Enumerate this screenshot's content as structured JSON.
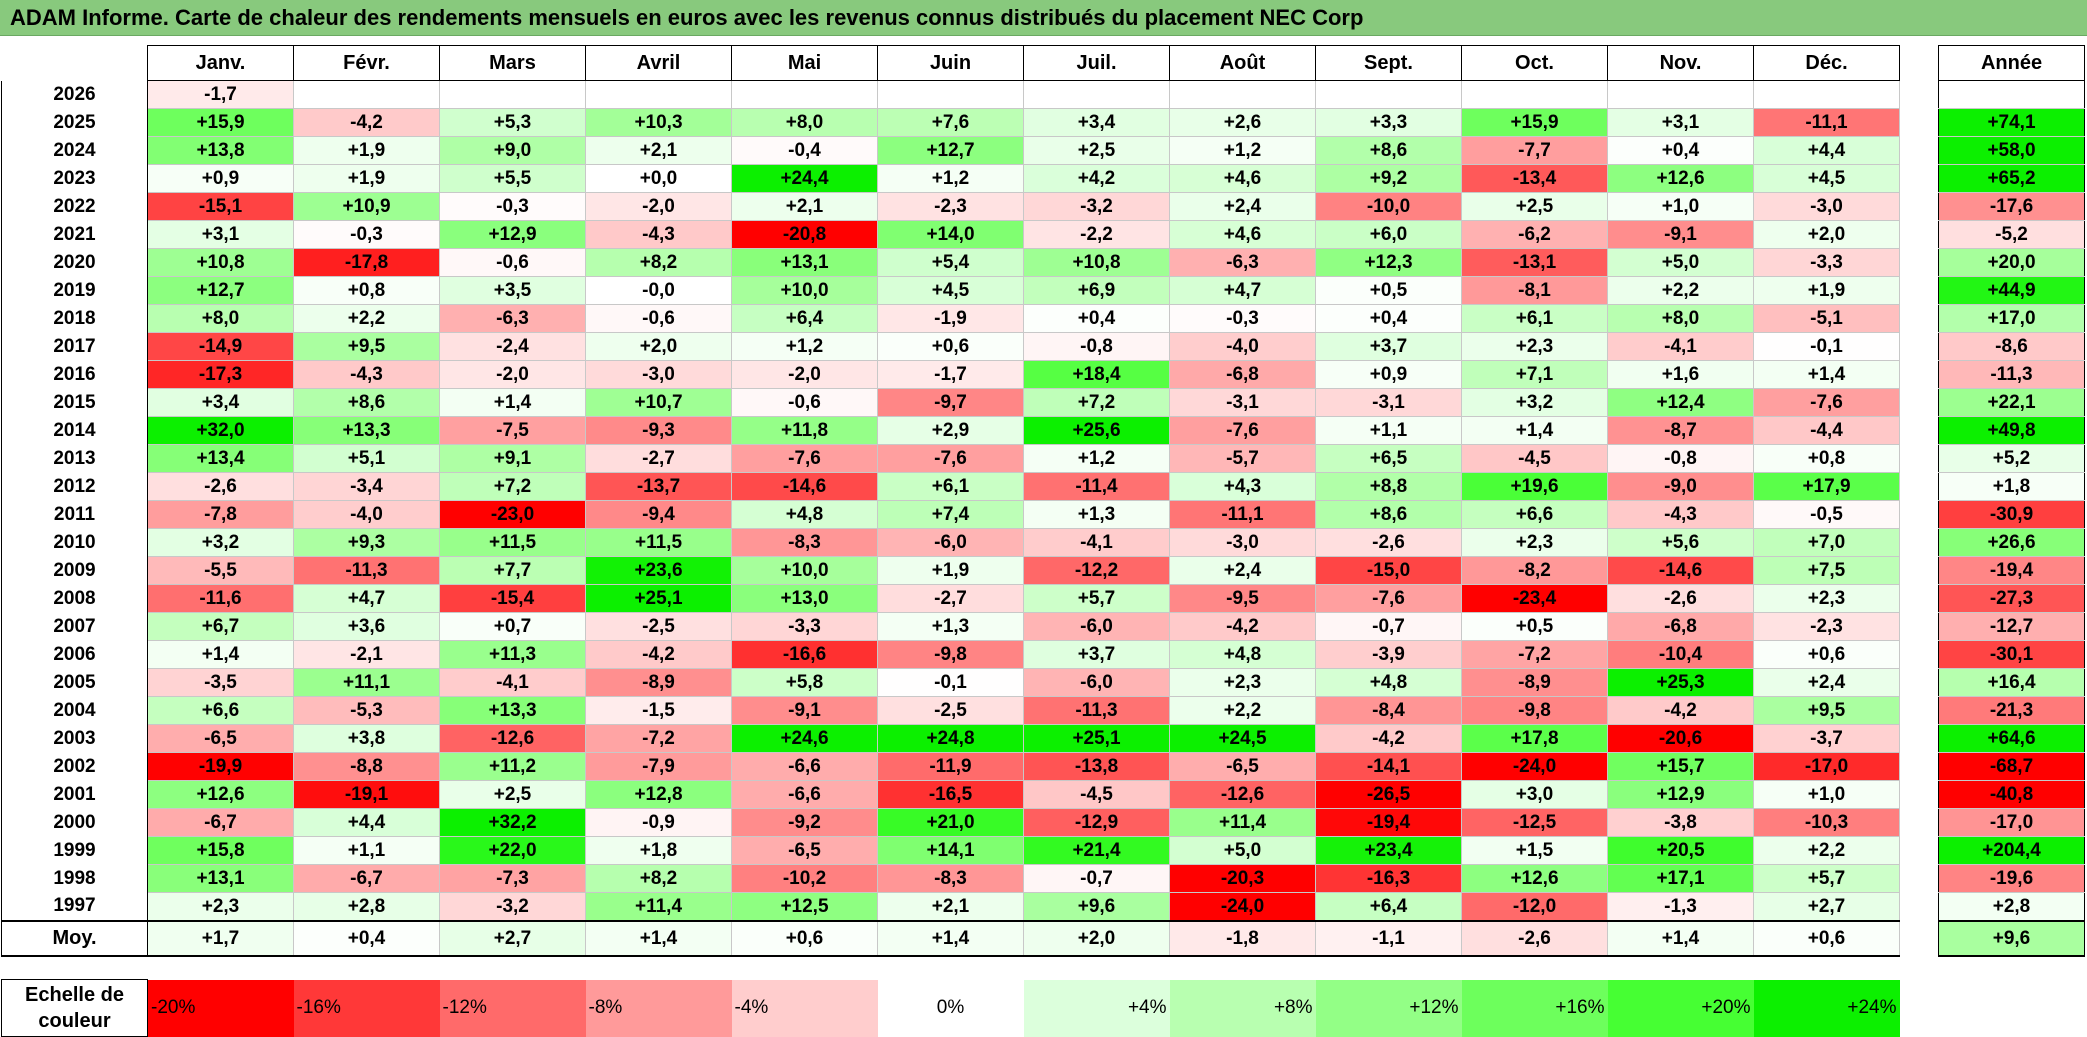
{
  "title": "ADAM Informe. Carte de chaleur des rendements mensuels en euros avec les revenus connus distribués du placement NEC Corp",
  "chart_data": {
    "type": "heatmap",
    "columns": [
      "Janv.",
      "Févr.",
      "Mars",
      "Avril",
      "Mai",
      "Juin",
      "Juil.",
      "Août",
      "Sept.",
      "Oct.",
      "Nov.",
      "Déc."
    ],
    "year_column_label": "Année",
    "rows": [
      {
        "year": "2026",
        "values": [
          "-1,7",
          "",
          "",
          "",
          "",
          "",
          "",
          "",
          "",
          "",
          "",
          ""
        ],
        "annual": ""
      },
      {
        "year": "2025",
        "values": [
          "+15,9",
          "-4,2",
          "+5,3",
          "+10,3",
          "+8,0",
          "+7,6",
          "+3,4",
          "+2,6",
          "+3,3",
          "+15,9",
          "+3,1",
          "-11,1"
        ],
        "annual": "+74,1"
      },
      {
        "year": "2024",
        "values": [
          "+13,8",
          "+1,9",
          "+9,0",
          "+2,1",
          "-0,4",
          "+12,7",
          "+2,5",
          "+1,2",
          "+8,6",
          "-7,7",
          "+0,4",
          "+4,4"
        ],
        "annual": "+58,0"
      },
      {
        "year": "2023",
        "values": [
          "+0,9",
          "+1,9",
          "+5,5",
          "+0,0",
          "+24,4",
          "+1,2",
          "+4,2",
          "+4,6",
          "+9,2",
          "-13,4",
          "+12,6",
          "+4,5"
        ],
        "annual": "+65,2"
      },
      {
        "year": "2022",
        "values": [
          "-15,1",
          "+10,9",
          "-0,3",
          "-2,0",
          "+2,1",
          "-2,3",
          "-3,2",
          "+2,4",
          "-10,0",
          "+2,5",
          "+1,0",
          "-3,0"
        ],
        "annual": "-17,6"
      },
      {
        "year": "2021",
        "values": [
          "+3,1",
          "-0,3",
          "+12,9",
          "-4,3",
          "-20,8",
          "+14,0",
          "-2,2",
          "+4,6",
          "+6,0",
          "-6,2",
          "-9,1",
          "+2,0"
        ],
        "annual": "-5,2"
      },
      {
        "year": "2020",
        "values": [
          "+10,8",
          "-17,8",
          "-0,6",
          "+8,2",
          "+13,1",
          "+5,4",
          "+10,8",
          "-6,3",
          "+12,3",
          "-13,1",
          "+5,0",
          "-3,3"
        ],
        "annual": "+20,0"
      },
      {
        "year": "2019",
        "values": [
          "+12,7",
          "+0,8",
          "+3,5",
          "-0,0",
          "+10,0",
          "+4,5",
          "+6,9",
          "+4,7",
          "+0,5",
          "-8,1",
          "+2,2",
          "+1,9"
        ],
        "annual": "+44,9"
      },
      {
        "year": "2018",
        "values": [
          "+8,0",
          "+2,2",
          "-6,3",
          "-0,6",
          "+6,4",
          "-1,9",
          "+0,4",
          "-0,3",
          "+0,4",
          "+6,1",
          "+8,0",
          "-5,1"
        ],
        "annual": "+17,0"
      },
      {
        "year": "2017",
        "values": [
          "-14,9",
          "+9,5",
          "-2,4",
          "+2,0",
          "+1,2",
          "+0,6",
          "-0,8",
          "-4,0",
          "+3,7",
          "+2,3",
          "-4,1",
          "-0,1"
        ],
        "annual": "-8,6"
      },
      {
        "year": "2016",
        "values": [
          "-17,3",
          "-4,3",
          "-2,0",
          "-3,0",
          "-2,0",
          "-1,7",
          "+18,4",
          "-6,8",
          "+0,9",
          "+7,1",
          "+1,6",
          "+1,4"
        ],
        "annual": "-11,3"
      },
      {
        "year": "2015",
        "values": [
          "+3,4",
          "+8,6",
          "+1,4",
          "+10,7",
          "-0,6",
          "-9,7",
          "+7,2",
          "-3,1",
          "-3,1",
          "+3,2",
          "+12,4",
          "-7,6"
        ],
        "annual": "+22,1"
      },
      {
        "year": "2014",
        "values": [
          "+32,0",
          "+13,3",
          "-7,5",
          "-9,3",
          "+11,8",
          "+2,9",
          "+25,6",
          "-7,6",
          "+1,1",
          "+1,4",
          "-8,7",
          "-4,4"
        ],
        "annual": "+49,8"
      },
      {
        "year": "2013",
        "values": [
          "+13,4",
          "+5,1",
          "+9,1",
          "-2,7",
          "-7,6",
          "-7,6",
          "+1,2",
          "-5,7",
          "+6,5",
          "-4,5",
          "-0,8",
          "+0,8"
        ],
        "annual": "+5,2"
      },
      {
        "year": "2012",
        "values": [
          "-2,6",
          "-3,4",
          "+7,2",
          "-13,7",
          "-14,6",
          "+6,1",
          "-11,4",
          "+4,3",
          "+8,8",
          "+19,6",
          "-9,0",
          "+17,9"
        ],
        "annual": "+1,8"
      },
      {
        "year": "2011",
        "values": [
          "-7,8",
          "-4,0",
          "-23,0",
          "-9,4",
          "+4,8",
          "+7,4",
          "+1,3",
          "-11,1",
          "+8,6",
          "+6,6",
          "-4,3",
          "-0,5"
        ],
        "annual": "-30,9"
      },
      {
        "year": "2010",
        "values": [
          "+3,2",
          "+9,3",
          "+11,5",
          "+11,5",
          "-8,3",
          "-6,0",
          "-4,1",
          "-3,0",
          "-2,6",
          "+2,3",
          "+5,6",
          "+7,0"
        ],
        "annual": "+26,6"
      },
      {
        "year": "2009",
        "values": [
          "-5,5",
          "-11,3",
          "+7,7",
          "+23,6",
          "+10,0",
          "+1,9",
          "-12,2",
          "+2,4",
          "-15,0",
          "-8,2",
          "-14,6",
          "+7,5"
        ],
        "annual": "-19,4"
      },
      {
        "year": "2008",
        "values": [
          "-11,6",
          "+4,7",
          "-15,4",
          "+25,1",
          "+13,0",
          "-2,7",
          "+5,7",
          "-9,5",
          "-7,6",
          "-23,4",
          "-2,6",
          "+2,3"
        ],
        "annual": "-27,3"
      },
      {
        "year": "2007",
        "values": [
          "+6,7",
          "+3,6",
          "+0,7",
          "-2,5",
          "-3,3",
          "+1,3",
          "-6,0",
          "-4,2",
          "-0,7",
          "+0,5",
          "-6,8",
          "-2,3"
        ],
        "annual": "-12,7"
      },
      {
        "year": "2006",
        "values": [
          "+1,4",
          "-2,1",
          "+11,3",
          "-4,2",
          "-16,6",
          "-9,8",
          "+3,7",
          "+4,8",
          "-3,9",
          "-7,2",
          "-10,4",
          "+0,6"
        ],
        "annual": "-30,1"
      },
      {
        "year": "2005",
        "values": [
          "-3,5",
          "+11,1",
          "-4,1",
          "-8,9",
          "+5,8",
          "-0,1",
          "-6,0",
          "+2,3",
          "+4,8",
          "-8,9",
          "+25,3",
          "+2,4"
        ],
        "annual": "+16,4"
      },
      {
        "year": "2004",
        "values": [
          "+6,6",
          "-5,3",
          "+13,3",
          "-1,5",
          "-9,1",
          "-2,5",
          "-11,3",
          "+2,2",
          "-8,4",
          "-9,8",
          "-4,2",
          "+9,5"
        ],
        "annual": "-21,3"
      },
      {
        "year": "2003",
        "values": [
          "-6,5",
          "+3,8",
          "-12,6",
          "-7,2",
          "+24,6",
          "+24,8",
          "+25,1",
          "+24,5",
          "-4,2",
          "+17,8",
          "-20,6",
          "-3,7"
        ],
        "annual": "+64,6"
      },
      {
        "year": "2002",
        "values": [
          "-19,9",
          "-8,8",
          "+11,2",
          "-7,9",
          "-6,6",
          "-11,9",
          "-13,8",
          "-6,5",
          "-14,1",
          "-24,0",
          "+15,7",
          "-17,0"
        ],
        "annual": "-68,7"
      },
      {
        "year": "2001",
        "values": [
          "+12,6",
          "-19,1",
          "+2,5",
          "+12,8",
          "-6,6",
          "-16,5",
          "-4,5",
          "-12,6",
          "-26,5",
          "+3,0",
          "+12,9",
          "+1,0"
        ],
        "annual": "-40,8"
      },
      {
        "year": "2000",
        "values": [
          "-6,7",
          "+4,4",
          "+32,2",
          "-0,9",
          "-9,2",
          "+21,0",
          "-12,9",
          "+11,4",
          "-19,4",
          "-12,5",
          "-3,8",
          "-10,3"
        ],
        "annual": "-17,0"
      },
      {
        "year": "1999",
        "values": [
          "+15,8",
          "+1,1",
          "+22,0",
          "+1,8",
          "-6,5",
          "+14,1",
          "+21,4",
          "+5,0",
          "+23,4",
          "+1,5",
          "+20,5",
          "+2,2"
        ],
        "annual": "+204,4"
      },
      {
        "year": "1998",
        "values": [
          "+13,1",
          "-6,7",
          "-7,3",
          "+8,2",
          "-10,2",
          "-8,3",
          "-0,7",
          "-20,3",
          "-16,3",
          "+12,6",
          "+17,1",
          "+5,7"
        ],
        "annual": "-19,6"
      },
      {
        "year": "1997",
        "values": [
          "+2,3",
          "+2,8",
          "-3,2",
          "+11,4",
          "+12,5",
          "+2,1",
          "+9,6",
          "-24,0",
          "+6,4",
          "-12,0",
          "-1,3",
          "+2,7"
        ],
        "annual": "+2,8"
      }
    ],
    "average": {
      "label": "Moy.",
      "values": [
        "+1,7",
        "+0,4",
        "+2,7",
        "+1,4",
        "+0,6",
        "+1,4",
        "+2,0",
        "-1,8",
        "-1,1",
        "-2,6",
        "+1,4",
        "+0,6"
      ],
      "annual": "+9,6"
    },
    "scale": {
      "label": "Echelle de couleur",
      "stops": [
        {
          "label": "-20%",
          "value": -20,
          "color": "#ff0000"
        },
        {
          "label": "-16%",
          "value": -16,
          "color": "#ff3838"
        },
        {
          "label": "-12%",
          "value": -12,
          "color": "#ff6a6a"
        },
        {
          "label": "-8%",
          "value": -8,
          "color": "#ff9a9a"
        },
        {
          "label": "-4%",
          "value": -4,
          "color": "#ffcdcd"
        },
        {
          "label": "0%",
          "value": 0,
          "color": "#ffffff"
        },
        {
          "label": "+4%",
          "value": 4,
          "color": "#dcffdc"
        },
        {
          "label": "+8%",
          "value": 8,
          "color": "#b8ffb0"
        },
        {
          "label": "+12%",
          "value": 12,
          "color": "#93ff86"
        },
        {
          "label": "+16%",
          "value": 16,
          "color": "#6dff5c"
        },
        {
          "label": "+20%",
          "value": 20,
          "color": "#46ff33"
        },
        {
          "label": "+24%",
          "value": 24,
          "color": "#0cf000"
        }
      ]
    }
  }
}
